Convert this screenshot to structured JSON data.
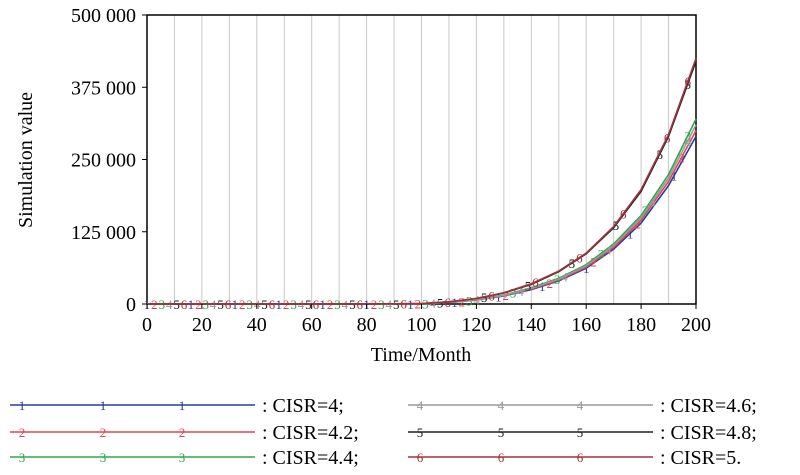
{
  "chart_data": {
    "type": "line",
    "xlabel": "Time/Month",
    "ylabel": "Simulation value",
    "xlim": [
      0,
      200
    ],
    "ylim": [
      0,
      500000
    ],
    "x_ticks": [
      0,
      20,
      40,
      60,
      80,
      100,
      120,
      140,
      160,
      180,
      200
    ],
    "x_tick_labels": [
      "0",
      "20",
      "40",
      "60",
      "80",
      "100",
      "120",
      "140",
      "160",
      "180",
      "200"
    ],
    "y_ticks": [
      0,
      125000,
      250000,
      375000,
      500000
    ],
    "y_tick_labels": [
      "0",
      "125 000",
      "250 000",
      "375 000",
      "500 000"
    ],
    "grid": "vertical",
    "legend_position": "bottom",
    "x": [
      0,
      20,
      40,
      60,
      80,
      100,
      110,
      120,
      130,
      140,
      150,
      160,
      170,
      180,
      190,
      200
    ],
    "series": [
      {
        "name": ": CISR=4;",
        "marker": "1",
        "color": "#2e3a9e",
        "values": [
          0,
          0,
          0,
          0,
          0,
          500,
          2500,
          7000,
          14000,
          25000,
          40000,
          62000,
          95000,
          140000,
          205000,
          290000
        ]
      },
      {
        "name": ": CISR=4.2;",
        "marker": "2",
        "color": "#e0454f",
        "values": [
          0,
          0,
          0,
          0,
          0,
          500,
          2500,
          7000,
          14500,
          26000,
          41500,
          64000,
          98000,
          145000,
          212000,
          300000
        ]
      },
      {
        "name": ": CISR=4.4;",
        "marker": "3",
        "color": "#2ea84a",
        "values": [
          0,
          0,
          0,
          0,
          0,
          600,
          2800,
          7500,
          15500,
          28000,
          44500,
          68000,
          104000,
          153000,
          224000,
          320000
        ]
      },
      {
        "name": ": CISR=4.6;",
        "marker": "4",
        "color": "#9a9a9a",
        "values": [
          0,
          0,
          0,
          0,
          0,
          600,
          2800,
          7500,
          15000,
          27000,
          43000,
          66000,
          101000,
          149000,
          218000,
          310000
        ]
      },
      {
        "name": ": CISR=4.8;",
        "marker": "5",
        "color": "#222222",
        "values": [
          0,
          0,
          0,
          0,
          0,
          800,
          3800,
          9500,
          19000,
          34000,
          56000,
          87000,
          132000,
          195000,
          290000,
          420000
        ]
      },
      {
        "name": ": CISR=5.",
        "marker": "6",
        "color": "#a0333f",
        "values": [
          0,
          0,
          0,
          0,
          0,
          800,
          3900,
          9700,
          19500,
          35000,
          57000,
          88000,
          134000,
          198000,
          293000,
          425000
        ]
      }
    ]
  }
}
